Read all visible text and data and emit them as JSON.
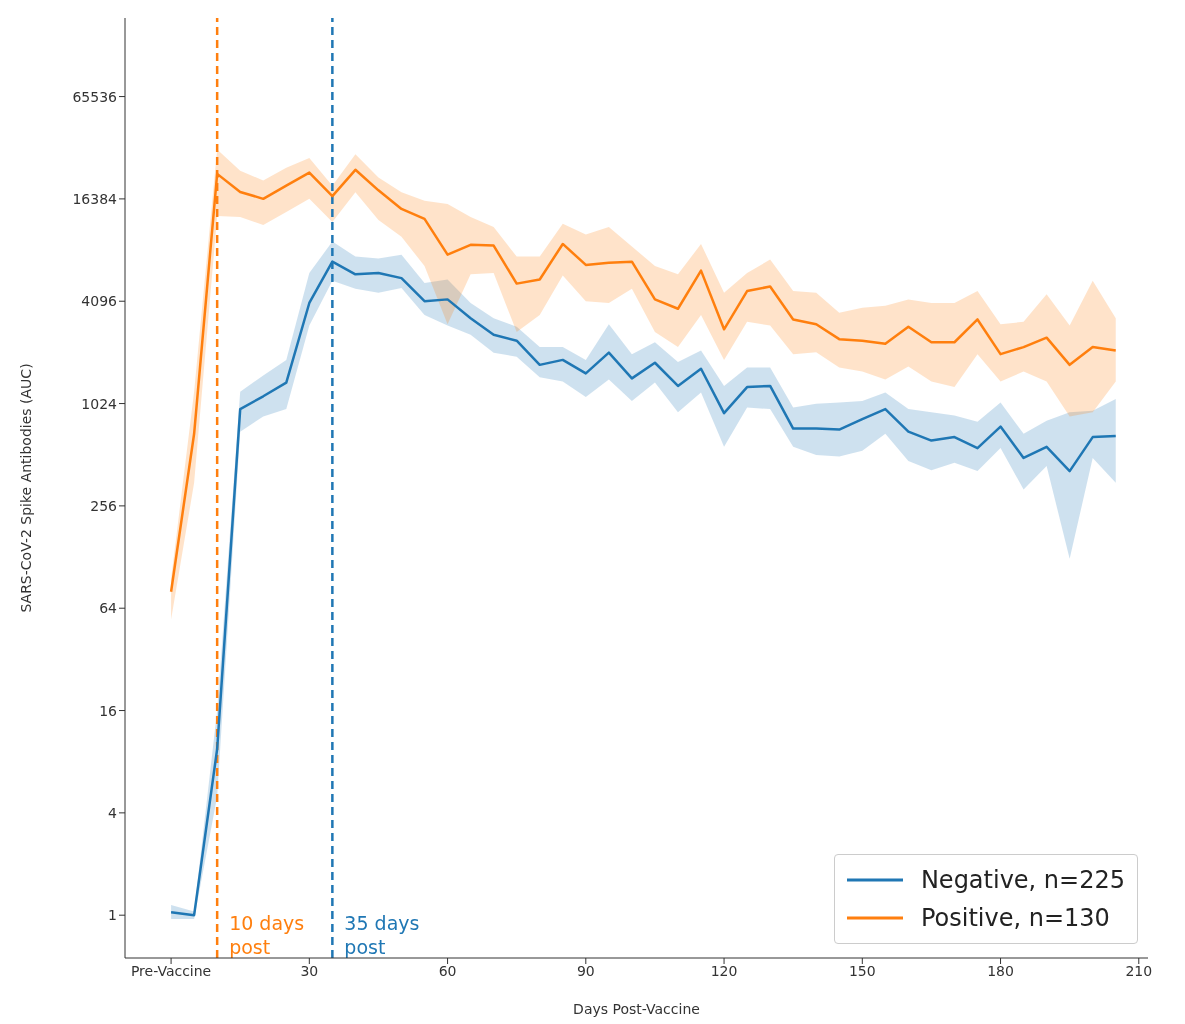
{
  "chart_data": {
    "type": "line",
    "xlabel": "Days Post-Vaccine",
    "ylabel": "SARS-CoV-2 Spike Antibodies (AUC)",
    "x": [
      0,
      5,
      10,
      15,
      20,
      25,
      30,
      35,
      40,
      45,
      50,
      55,
      60,
      65,
      70,
      75,
      80,
      85,
      90,
      95,
      100,
      105,
      110,
      115,
      120,
      125,
      130,
      135,
      140,
      145,
      150,
      155,
      160,
      165,
      170,
      175,
      180,
      185,
      190,
      195,
      200,
      205
    ],
    "series": [
      {
        "name": "Negative, n=225",
        "color": "#1f77b4",
        "values": [
          1.04,
          1.0,
          9.5,
          950,
          1130,
          1360,
          4000,
          7000,
          5900,
          6000,
          5600,
          4100,
          4200,
          3250,
          2600,
          2400,
          1730,
          1850,
          1540,
          2040,
          1440,
          1780,
          1300,
          1640,
          900,
          1280,
          1300,
          730,
          730,
          720,
          830,
          950,
          700,
          620,
          650,
          560,
          750,
          490,
          570,
          410,
          650,
          660
        ],
        "lower": [
          0.95,
          0.95,
          5,
          700,
          860,
          950,
          2950,
          5400,
          4850,
          4600,
          4900,
          3400,
          2950,
          2600,
          2040,
          1930,
          1460,
          1380,
          1120,
          1420,
          1060,
          1360,
          910,
          1190,
          570,
          970,
          950,
          570,
          510,
          500,
          540,
          680,
          470,
          415,
          460,
          410,
          560,
          320,
          440,
          125,
          490,
          350
        ],
        "upper": [
          1.15,
          1.05,
          16,
          1200,
          1500,
          1850,
          6000,
          9200,
          7500,
          7300,
          7700,
          5250,
          5500,
          4000,
          3250,
          2900,
          2200,
          2200,
          1850,
          3000,
          2000,
          2350,
          1800,
          2100,
          1300,
          1670,
          1670,
          970,
          1020,
          1040,
          1060,
          1190,
          950,
          910,
          870,
          800,
          1040,
          680,
          810,
          910,
          930,
          1090
        ]
      },
      {
        "name": "Positive, n=130",
        "color": "#ff7f0e",
        "values": [
          80,
          680,
          23000,
          18000,
          16400,
          19600,
          23400,
          17000,
          24300,
          18400,
          14300,
          12500,
          7700,
          8800,
          8700,
          5200,
          5500,
          8900,
          6700,
          6900,
          7000,
          4200,
          3700,
          6200,
          2800,
          4700,
          5000,
          3200,
          3000,
          2450,
          2400,
          2300,
          2900,
          2350,
          2350,
          3200,
          2000,
          2200,
          2500,
          1730,
          2200,
          2100
        ],
        "lower": [
          55,
          350,
          13000,
          12800,
          11500,
          13700,
          16400,
          12000,
          17900,
          12300,
          9800,
          6600,
          3000,
          5900,
          6000,
          2700,
          3400,
          5800,
          4100,
          4000,
          4850,
          2700,
          2200,
          3400,
          1850,
          3100,
          2950,
          2000,
          2050,
          1670,
          1580,
          1420,
          1690,
          1380,
          1280,
          2000,
          1380,
          1580,
          1380,
          860,
          910,
          1380
        ],
        "upper": [
          95,
          1200,
          32000,
          24000,
          21000,
          25000,
          28500,
          19600,
          30000,
          21900,
          17900,
          16000,
          15300,
          12800,
          11200,
          7500,
          7500,
          11700,
          10100,
          11200,
          8600,
          6600,
          5900,
          8900,
          4600,
          6000,
          7200,
          4700,
          4600,
          3500,
          3750,
          3850,
          4200,
          4000,
          4000,
          4700,
          3000,
          3100,
          4500,
          2950,
          5400,
          3250
        ]
      }
    ],
    "log": "y",
    "xlim": [
      -10,
      212
    ],
    "xticks": [
      {
        "value": 0,
        "label": "Pre-Vaccine"
      },
      30,
      60,
      90,
      120,
      150,
      180,
      210
    ],
    "ylim": [
      0.56,
      190000
    ],
    "yticks": [
      1,
      4,
      16,
      64,
      256,
      1024,
      4096,
      16384,
      65536
    ],
    "ref_lines": [
      {
        "axis": "x",
        "value": 10,
        "label": "10 days post",
        "color": "#ff7f0e",
        "line_style": "dashed"
      },
      {
        "axis": "x",
        "value": 35,
        "label": "35 days post",
        "color": "#1f77b4",
        "line_style": "dashed"
      }
    ],
    "legend": "bottom right",
    "grid": false,
    "marker": "none",
    "line_style": "solid"
  }
}
